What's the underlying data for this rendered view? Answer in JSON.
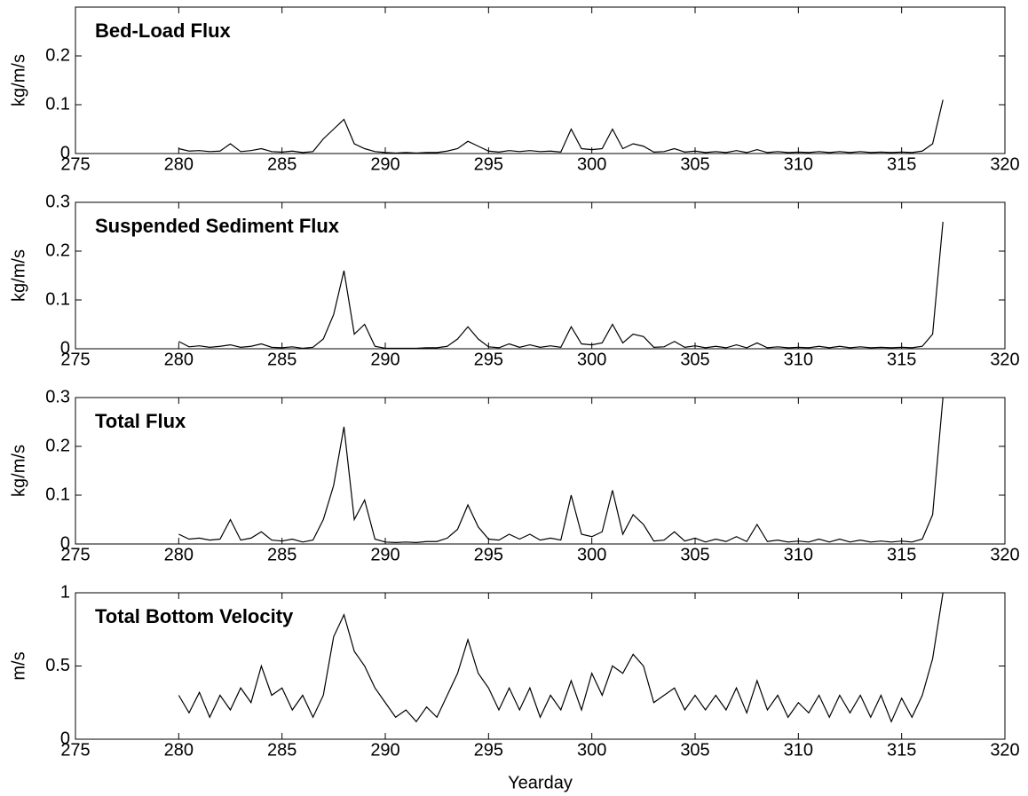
{
  "chart_data": [
    {
      "type": "line",
      "title": "Bed-Load Flux",
      "ylabel": "kg/m/s",
      "color": "#000000",
      "xlim": [
        275,
        320
      ],
      "xticks": [
        275,
        280,
        285,
        290,
        295,
        300,
        305,
        310,
        315,
        320
      ],
      "ylim": [
        0,
        0.3
      ],
      "yticks": [
        0,
        0.1,
        0.2
      ],
      "x": [
        280,
        280.5,
        281,
        281.5,
        282,
        282.5,
        283,
        283.5,
        284,
        284.5,
        285,
        285.5,
        286,
        286.5,
        287,
        287.5,
        288,
        288.5,
        289,
        289.5,
        290,
        290.5,
        291,
        291.5,
        292,
        292.5,
        293,
        293.5,
        294,
        294.5,
        295,
        295.5,
        296,
        296.5,
        297,
        297.5,
        298,
        298.5,
        299,
        299.5,
        300,
        300.5,
        301,
        301.5,
        302,
        302.5,
        303,
        303.5,
        304,
        304.5,
        305,
        305.5,
        306,
        306.5,
        307,
        307.5,
        308,
        308.5,
        309,
        309.5,
        310,
        310.5,
        311,
        311.5,
        312,
        312.5,
        313,
        313.5,
        314,
        314.5,
        315,
        315.5,
        316,
        316.5,
        317
      ],
      "values": [
        0.01,
        0.005,
        0.006,
        0.004,
        0.005,
        0.02,
        0.004,
        0.006,
        0.01,
        0.004,
        0.003,
        0.005,
        0.002,
        0.004,
        0.03,
        0.05,
        0.07,
        0.02,
        0.01,
        0.004,
        0.002,
        0.001,
        0.002,
        0.001,
        0.002,
        0.002,
        0.005,
        0.01,
        0.025,
        0.015,
        0.005,
        0.003,
        0.006,
        0.004,
        0.006,
        0.004,
        0.005,
        0.003,
        0.05,
        0.01,
        0.008,
        0.01,
        0.05,
        0.01,
        0.02,
        0.015,
        0.003,
        0.004,
        0.01,
        0.003,
        0.005,
        0.002,
        0.004,
        0.002,
        0.006,
        0.002,
        0.008,
        0.002,
        0.004,
        0.002,
        0.003,
        0.002,
        0.004,
        0.002,
        0.004,
        0.002,
        0.004,
        0.002,
        0.003,
        0.002,
        0.003,
        0.002,
        0.005,
        0.02,
        0.11
      ]
    },
    {
      "type": "line",
      "title": "Suspended Sediment Flux",
      "ylabel": "kg/m/s",
      "color": "#000000",
      "xlim": [
        275,
        320
      ],
      "xticks": [
        275,
        280,
        285,
        290,
        295,
        300,
        305,
        310,
        315,
        320
      ],
      "ylim": [
        0,
        0.3
      ],
      "yticks": [
        0,
        0.1,
        0.2,
        0.3
      ],
      "x": [
        280,
        280.5,
        281,
        281.5,
        282,
        282.5,
        283,
        283.5,
        284,
        284.5,
        285,
        285.5,
        286,
        286.5,
        287,
        287.5,
        288,
        288.5,
        289,
        289.5,
        290,
        290.5,
        291,
        291.5,
        292,
        292.5,
        293,
        293.5,
        294,
        294.5,
        295,
        295.5,
        296,
        296.5,
        297,
        297.5,
        298,
        298.5,
        299,
        299.5,
        300,
        300.5,
        301,
        301.5,
        302,
        302.5,
        303,
        303.5,
        304,
        304.5,
        305,
        305.5,
        306,
        306.5,
        307,
        307.5,
        308,
        308.5,
        309,
        309.5,
        310,
        310.5,
        311,
        311.5,
        312,
        312.5,
        313,
        313.5,
        314,
        314.5,
        315,
        315.5,
        316,
        316.5,
        317
      ],
      "values": [
        0.015,
        0.004,
        0.006,
        0.003,
        0.005,
        0.008,
        0.003,
        0.005,
        0.01,
        0.003,
        0.002,
        0.004,
        0.001,
        0.003,
        0.02,
        0.07,
        0.16,
        0.03,
        0.05,
        0.005,
        0.001,
        0.001,
        0.001,
        0.001,
        0.002,
        0.002,
        0.005,
        0.02,
        0.045,
        0.02,
        0.004,
        0.002,
        0.01,
        0.003,
        0.008,
        0.003,
        0.006,
        0.003,
        0.045,
        0.01,
        0.008,
        0.012,
        0.05,
        0.012,
        0.03,
        0.025,
        0.003,
        0.004,
        0.015,
        0.003,
        0.006,
        0.002,
        0.005,
        0.002,
        0.008,
        0.002,
        0.012,
        0.002,
        0.004,
        0.002,
        0.003,
        0.002,
        0.005,
        0.002,
        0.005,
        0.002,
        0.004,
        0.002,
        0.003,
        0.002,
        0.003,
        0.002,
        0.005,
        0.03,
        0.26
      ]
    },
    {
      "type": "line",
      "title": "Total Flux",
      "ylabel": "kg/m/s",
      "color": "#000000",
      "xlim": [
        275,
        320
      ],
      "xticks": [
        275,
        280,
        285,
        290,
        295,
        300,
        305,
        310,
        315,
        320
      ],
      "ylim": [
        0,
        0.3
      ],
      "yticks": [
        0,
        0.1,
        0.2,
        0.3
      ],
      "x": [
        280,
        280.5,
        281,
        281.5,
        282,
        282.5,
        283,
        283.5,
        284,
        284.5,
        285,
        285.5,
        286,
        286.5,
        287,
        287.5,
        288,
        288.5,
        289,
        289.5,
        290,
        290.5,
        291,
        291.5,
        292,
        292.5,
        293,
        293.5,
        294,
        294.5,
        295,
        295.5,
        296,
        296.5,
        297,
        297.5,
        298,
        298.5,
        299,
        299.5,
        300,
        300.5,
        301,
        301.5,
        302,
        302.5,
        303,
        303.5,
        304,
        304.5,
        305,
        305.5,
        306,
        306.5,
        307,
        307.5,
        308,
        308.5,
        309,
        309.5,
        310,
        310.5,
        311,
        311.5,
        312,
        312.5,
        313,
        313.5,
        314,
        314.5,
        315,
        315.5,
        316,
        316.5,
        317
      ],
      "values": [
        0.02,
        0.01,
        0.012,
        0.008,
        0.01,
        0.05,
        0.008,
        0.012,
        0.025,
        0.008,
        0.006,
        0.01,
        0.004,
        0.008,
        0.05,
        0.12,
        0.24,
        0.05,
        0.09,
        0.01,
        0.004,
        0.003,
        0.004,
        0.003,
        0.005,
        0.005,
        0.012,
        0.03,
        0.08,
        0.035,
        0.01,
        0.008,
        0.02,
        0.01,
        0.02,
        0.008,
        0.012,
        0.008,
        0.1,
        0.02,
        0.015,
        0.025,
        0.11,
        0.02,
        0.06,
        0.04,
        0.006,
        0.008,
        0.025,
        0.006,
        0.012,
        0.004,
        0.01,
        0.005,
        0.015,
        0.005,
        0.04,
        0.005,
        0.008,
        0.004,
        0.006,
        0.004,
        0.01,
        0.004,
        0.01,
        0.004,
        0.008,
        0.004,
        0.006,
        0.004,
        0.006,
        0.004,
        0.01,
        0.06,
        0.3
      ]
    },
    {
      "type": "line",
      "title": "Total Bottom Velocity",
      "ylabel": "m/s",
      "xlabel": "Yearday",
      "color": "#000000",
      "xlim": [
        275,
        320
      ],
      "xticks": [
        275,
        280,
        285,
        290,
        295,
        300,
        305,
        310,
        315,
        320
      ],
      "ylim": [
        0,
        1
      ],
      "yticks": [
        0,
        0.5,
        1
      ],
      "x": [
        280,
        280.5,
        281,
        281.5,
        282,
        282.5,
        283,
        283.5,
        284,
        284.5,
        285,
        285.5,
        286,
        286.5,
        287,
        287.5,
        288,
        288.5,
        289,
        289.5,
        290,
        290.5,
        291,
        291.5,
        292,
        292.5,
        293,
        293.5,
        294,
        294.5,
        295,
        295.5,
        296,
        296.5,
        297,
        297.5,
        298,
        298.5,
        299,
        299.5,
        300,
        300.5,
        301,
        301.5,
        302,
        302.5,
        303,
        303.5,
        304,
        304.5,
        305,
        305.5,
        306,
        306.5,
        307,
        307.5,
        308,
        308.5,
        309,
        309.5,
        310,
        310.5,
        311,
        311.5,
        312,
        312.5,
        313,
        313.5,
        314,
        314.5,
        315,
        315.5,
        316,
        316.5,
        317
      ],
      "values": [
        0.3,
        0.18,
        0.32,
        0.15,
        0.3,
        0.2,
        0.35,
        0.25,
        0.5,
        0.3,
        0.35,
        0.2,
        0.3,
        0.15,
        0.3,
        0.7,
        0.85,
        0.6,
        0.5,
        0.35,
        0.25,
        0.15,
        0.2,
        0.12,
        0.22,
        0.15,
        0.3,
        0.45,
        0.68,
        0.45,
        0.35,
        0.2,
        0.35,
        0.2,
        0.35,
        0.15,
        0.3,
        0.2,
        0.4,
        0.2,
        0.45,
        0.3,
        0.5,
        0.45,
        0.58,
        0.5,
        0.25,
        0.3,
        0.35,
        0.2,
        0.3,
        0.2,
        0.3,
        0.2,
        0.35,
        0.18,
        0.4,
        0.2,
        0.3,
        0.15,
        0.25,
        0.18,
        0.3,
        0.15,
        0.3,
        0.18,
        0.3,
        0.15,
        0.3,
        0.12,
        0.28,
        0.15,
        0.3,
        0.55,
        1.0
      ]
    }
  ]
}
